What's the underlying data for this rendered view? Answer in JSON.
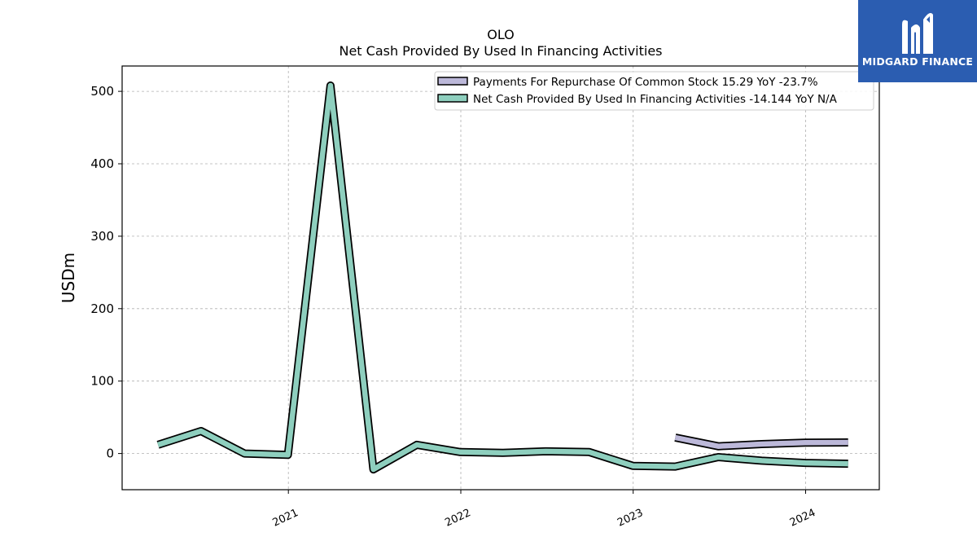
{
  "chart_data": {
    "type": "line",
    "title": "OLO",
    "subtitle": "Net Cash Provided By Used In Financing Activities",
    "ylabel": "USDm",
    "xlabel": "",
    "ylim": [
      -50,
      535
    ],
    "xlim": [
      "2020-01-15",
      "2024-06-05"
    ],
    "yticks": [
      0,
      100,
      200,
      300,
      400,
      500
    ],
    "xticks": [
      {
        "date": "2021-01-01",
        "label": "2021"
      },
      {
        "date": "2022-01-01",
        "label": "2022"
      },
      {
        "date": "2023-01-01",
        "label": "2023"
      },
      {
        "date": "2024-01-01",
        "label": "2024"
      }
    ],
    "grid": true,
    "legend_position": "top-right",
    "series": [
      {
        "name": "Payments For Repurchase Of Common Stock  15.29 YoY -23.7%",
        "color": "#bcb8d9",
        "x": [
          "2023-03-31",
          "2023-06-30",
          "2023-09-30",
          "2023-12-31",
          "2024-03-31"
        ],
        "values": [
          22,
          10,
          13,
          15,
          15.29
        ]
      },
      {
        "name": "Net Cash Provided By Used In Financing Activities  -14.144 YoY N/A",
        "color": "#8ecfbe",
        "x": [
          "2020-03-31",
          "2020-06-30",
          "2020-09-30",
          "2020-12-31",
          "2021-03-31",
          "2021-06-30",
          "2021-09-30",
          "2021-12-31",
          "2022-03-31",
          "2022-06-30",
          "2022-09-30",
          "2022-12-31",
          "2023-03-31",
          "2023-06-30",
          "2023-09-30",
          "2023-12-31",
          "2024-03-31"
        ],
        "values": [
          12,
          31,
          0,
          -2,
          508,
          -22,
          12,
          2,
          1,
          3,
          2,
          -17,
          -18,
          -5,
          -10,
          -13,
          -14.144
        ]
      }
    ]
  },
  "branding": {
    "logo_text": "MIDGARD FINANCE"
  }
}
